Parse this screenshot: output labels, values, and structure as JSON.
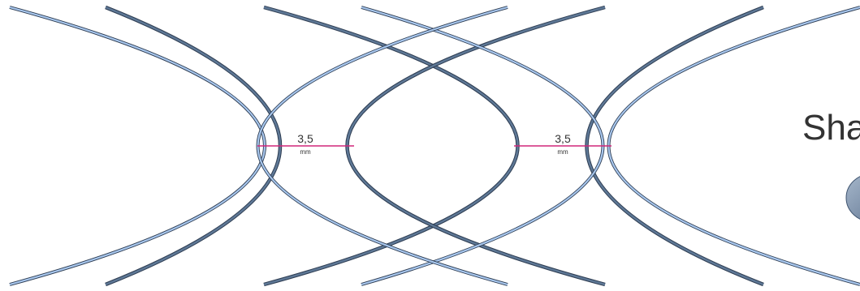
{
  "colors": {
    "light_curve": "#a9c8ef",
    "dark_curve": "#5e7896",
    "curve_outline": "#2e3d52",
    "dimension_line": "#d1267a",
    "text": "#333333",
    "circle_fill": "#7e93ad"
  },
  "dimensions": [
    {
      "value": "3,5",
      "unit": "mm"
    },
    {
      "value": "3,5",
      "unit": "mm"
    }
  ],
  "side_label": "Sha"
}
